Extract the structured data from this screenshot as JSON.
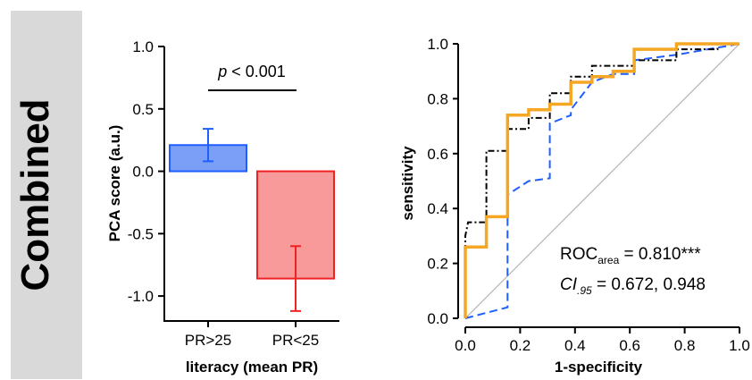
{
  "panel_label": "Combined",
  "chart_data": [
    {
      "type": "bar",
      "categories": [
        "PR>25",
        "PR<25"
      ],
      "values": [
        0.21,
        -0.86
      ],
      "error": [
        0.13,
        0.26
      ],
      "colors": [
        "#7b9ff6",
        "#f89a9a"
      ],
      "edge_colors": [
        "#1f5fff",
        "#ee2222"
      ],
      "xlabel": "literacy (mean PR)",
      "ylabel": "PCA score (a.u.)",
      "ylim": [
        -1.2,
        1.0
      ],
      "yticks": [
        1.0,
        0.5,
        0.0,
        -0.5,
        -1.0
      ],
      "ytick_labels": [
        "1.0",
        "0.5",
        "0.0",
        "-0.5",
        "-1.0"
      ],
      "annotation_p": "p",
      "annotation_rest": " < 0.001"
    },
    {
      "type": "line",
      "xlabel": "1-specificity",
      "ylabel": "sensitivity",
      "xlim": [
        0,
        1
      ],
      "ylim": [
        0,
        1
      ],
      "xticks": [
        "0.0",
        "0.2",
        "0.4",
        "0.6",
        "0.8",
        "1.0"
      ],
      "yticks": [
        "0.0",
        "0.2",
        "0.4",
        "0.6",
        "0.8",
        "1.0"
      ],
      "series": [
        {
          "color": "#f5a623",
          "style": "solid",
          "points": [
            [
              0,
              0
            ],
            [
              0,
              0.26
            ],
            [
              0.077,
              0.26
            ],
            [
              0.077,
              0.37
            ],
            [
              0.154,
              0.37
            ],
            [
              0.154,
              0.74
            ],
            [
              0.231,
              0.74
            ],
            [
              0.231,
              0.76
            ],
            [
              0.308,
              0.76
            ],
            [
              0.308,
              0.78
            ],
            [
              0.385,
              0.78
            ],
            [
              0.385,
              0.86
            ],
            [
              0.462,
              0.86
            ],
            [
              0.462,
              0.88
            ],
            [
              0.539,
              0.88
            ],
            [
              0.539,
              0.9
            ],
            [
              0.616,
              0.9
            ],
            [
              0.616,
              0.98
            ],
            [
              0.77,
              0.98
            ],
            [
              0.77,
              1.0
            ],
            [
              1.0,
              1.0
            ]
          ]
        },
        {
          "color": "#000000",
          "style": "dashdot",
          "points": [
            [
              0,
              0
            ],
            [
              0,
              0.3
            ],
            [
              0.01,
              0.35
            ],
            [
              0.077,
              0.35
            ],
            [
              0.077,
              0.61
            ],
            [
              0.154,
              0.61
            ],
            [
              0.154,
              0.69
            ],
            [
              0.231,
              0.69
            ],
            [
              0.231,
              0.73
            ],
            [
              0.308,
              0.73
            ],
            [
              0.308,
              0.82
            ],
            [
              0.385,
              0.82
            ],
            [
              0.385,
              0.88
            ],
            [
              0.462,
              0.88
            ],
            [
              0.462,
              0.92
            ],
            [
              0.616,
              0.92
            ],
            [
              0.616,
              0.94
            ],
            [
              0.77,
              0.94
            ],
            [
              0.77,
              0.98
            ],
            [
              0.92,
              0.98
            ],
            [
              0.92,
              1.0
            ],
            [
              1.0,
              1.0
            ]
          ]
        },
        {
          "color": "#1f5fff",
          "style": "dashed",
          "points": [
            [
              0,
              0
            ],
            [
              0.154,
              0.04
            ],
            [
              0.154,
              0.45
            ],
            [
              0.231,
              0.5
            ],
            [
              0.308,
              0.51
            ],
            [
              0.308,
              0.71
            ],
            [
              0.385,
              0.74
            ],
            [
              0.385,
              0.76
            ],
            [
              0.462,
              0.86
            ],
            [
              0.539,
              0.89
            ],
            [
              0.616,
              0.89
            ],
            [
              0.616,
              0.94
            ],
            [
              0.77,
              0.96
            ],
            [
              1.0,
              1.0
            ]
          ]
        },
        {
          "color": "#aaaaaa",
          "style": "reference",
          "points": [
            [
              0,
              0
            ],
            [
              1,
              1
            ]
          ]
        }
      ],
      "roc_prefix": "ROC",
      "roc_sub": "area",
      "roc_value": " = 0.810***",
      "ci_prefix": "CI",
      "ci_sub": ".95",
      "ci_value": " = 0.672, 0.948"
    }
  ]
}
